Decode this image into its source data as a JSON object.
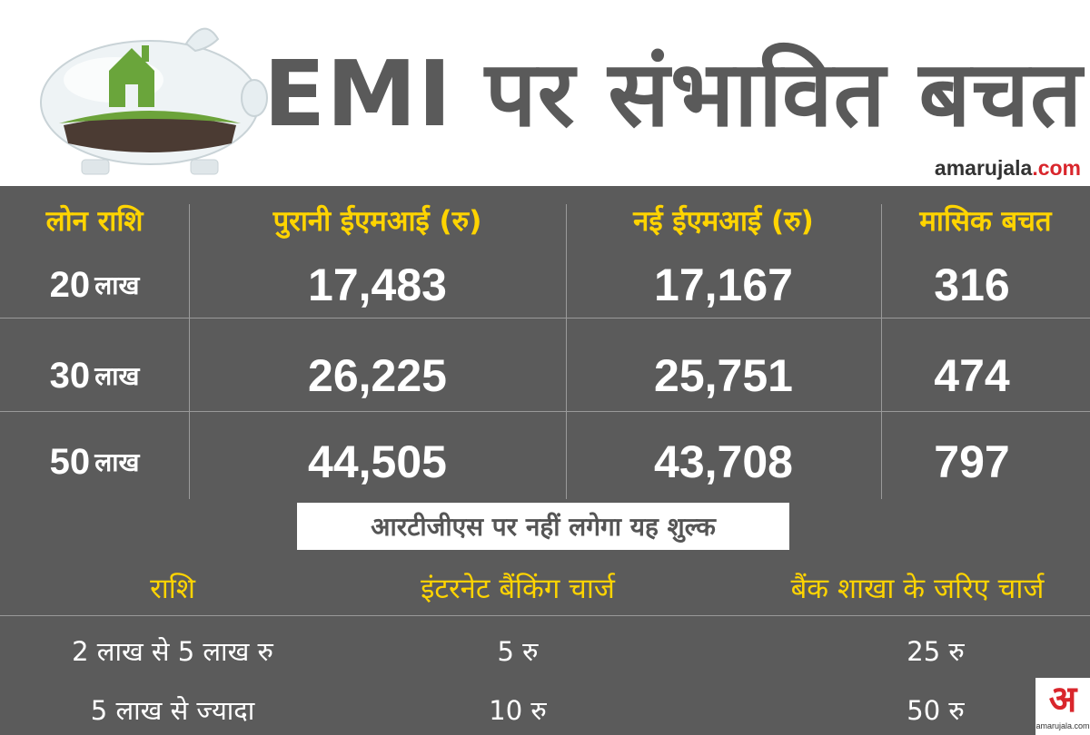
{
  "header": {
    "title": "EMI पर संभावित बचत",
    "brand_name": "amarujala",
    "brand_domain": ".com"
  },
  "emi_table": {
    "headers": [
      "लोन राशि",
      "पुरानी ईएमआई (रु)",
      "नई ईएमआई (रु)",
      "मासिक बचत"
    ],
    "rows": [
      {
        "amount_num": "20",
        "amount_unit": "लाख",
        "old": "17,483",
        "new": "17,167",
        "saving": "316"
      },
      {
        "amount_num": "30",
        "amount_unit": "लाख",
        "old": "26,225",
        "new": "25,751",
        "saving": "474"
      },
      {
        "amount_num": "50",
        "amount_unit": "लाख",
        "old": "44,505",
        "new": "43,708",
        "saving": "797"
      }
    ]
  },
  "rtgs": {
    "banner": "आरटीजीएस पर नहीं लगेगा यह शुल्क",
    "headers": [
      "राशि",
      "इंटरनेट बैंकिंग चार्ज",
      "बैंक शाखा के जरिए चार्ज"
    ],
    "rows": [
      {
        "amount": "2 लाख से 5 लाख रु",
        "internet": "5 रु",
        "branch": "25 रु"
      },
      {
        "amount": "5 लाख से ज्यादा",
        "internet": "10 रु",
        "branch": "50 रु"
      }
    ]
  },
  "logo": {
    "glyph": "अ",
    "caption": "amarujala.com"
  },
  "colors": {
    "header_yellow": "#ffd400",
    "dark_bg": "#5b5b5b",
    "brand_red": "#d9262c"
  },
  "icons": {
    "illustration": "piggy-bank-with-grass-house"
  }
}
